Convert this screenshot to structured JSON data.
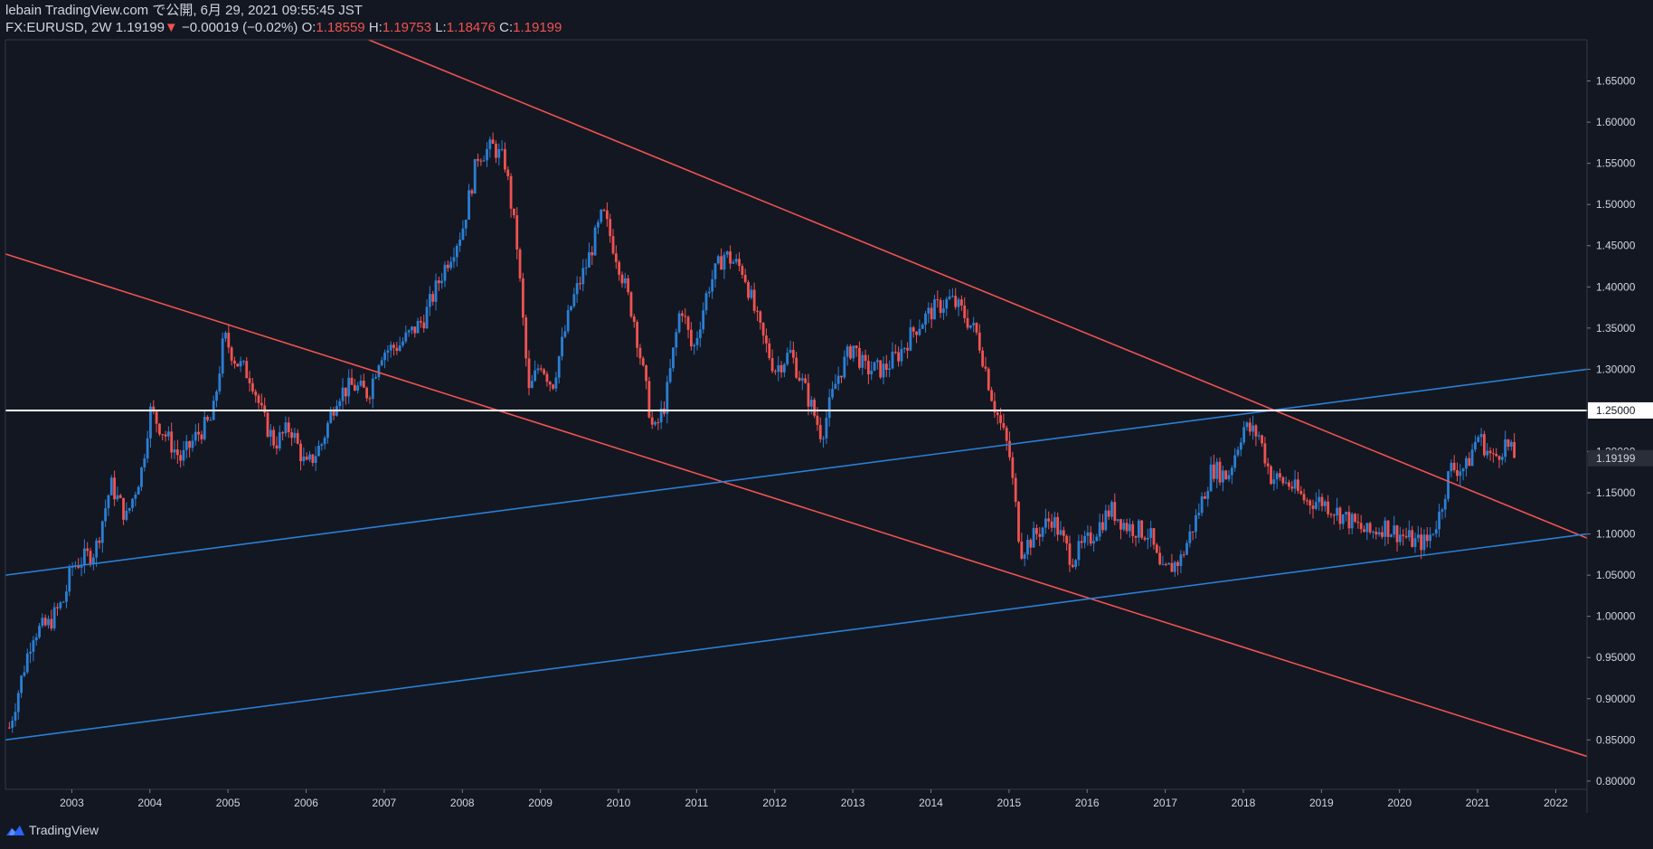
{
  "header": {
    "line1": "lebain TradingView.com で公開, 6月 29, 2021 09:55:45 JST",
    "symbol": "FX:EURUSD, 2W",
    "last": "1.19199",
    "change_arrow": "▼",
    "change": "−0.00019 (−0.02%)",
    "o_label": "O:",
    "o_value": "1.18559",
    "h_label": "H:",
    "h_value": "1.19753",
    "l_label": "L:",
    "l_value": "1.18476",
    "c_label": "C:",
    "c_value": "1.19199"
  },
  "footer": {
    "brand": "TradingView",
    "logo_icon": "tradingview-logo-icon"
  },
  "colors": {
    "background": "#131722",
    "up": "#2962ff",
    "up_light": "#2b7fd4",
    "down": "#ef5350",
    "horizontal": "#ffffff",
    "text": "#d1d4dc",
    "grid": "#1e222d"
  },
  "chart_data": {
    "type": "candlestick",
    "title": "FX:EURUSD, 2W",
    "xlabel": "",
    "ylabel": "",
    "xlim": [
      2002.15,
      2022.4
    ],
    "ylim": [
      0.79,
      1.7
    ],
    "x_ticks": [
      2003,
      2004,
      2005,
      2006,
      2007,
      2008,
      2009,
      2010,
      2011,
      2012,
      2013,
      2014,
      2015,
      2016,
      2017,
      2018,
      2019,
      2020,
      2021,
      2022
    ],
    "x_tick_labels": [
      "2003",
      "2004",
      "2005",
      "2006",
      "2007",
      "2008",
      "2009",
      "2010",
      "2011",
      "2012",
      "2013",
      "2014",
      "2015",
      "2016",
      "2017",
      "2018",
      "2019",
      "2020",
      "2021",
      "2022"
    ],
    "y_ticks": [
      0.8,
      0.85,
      0.9,
      0.95,
      1.0,
      1.05,
      1.1,
      1.15,
      1.2,
      1.25,
      1.3,
      1.35,
      1.4,
      1.45,
      1.5,
      1.55,
      1.6,
      1.65
    ],
    "y_tick_labels": [
      "0.80000",
      "0.85000",
      "0.90000",
      "0.95000",
      "1.00000",
      "1.05000",
      "1.10000",
      "1.15000",
      "1.20000",
      "1.25000",
      "1.30000",
      "1.35000",
      "1.40000",
      "1.45000",
      "1.50000",
      "1.55000",
      "1.60000",
      "1.65000"
    ],
    "price_path": [
      [
        2002.2,
        0.865
      ],
      [
        2002.5,
        0.98
      ],
      [
        2002.7,
        0.99
      ],
      [
        2002.9,
        1.02
      ],
      [
        2003.0,
        1.06
      ],
      [
        2003.3,
        1.08
      ],
      [
        2003.5,
        1.16
      ],
      [
        2003.7,
        1.12
      ],
      [
        2003.9,
        1.18
      ],
      [
        2004.0,
        1.25
      ],
      [
        2004.2,
        1.22
      ],
      [
        2004.4,
        1.19
      ],
      [
        2004.6,
        1.22
      ],
      [
        2004.8,
        1.24
      ],
      [
        2004.95,
        1.34
      ],
      [
        2005.1,
        1.31
      ],
      [
        2005.3,
        1.29
      ],
      [
        2005.45,
        1.24
      ],
      [
        2005.6,
        1.21
      ],
      [
        2005.8,
        1.23
      ],
      [
        2006.0,
        1.18
      ],
      [
        2006.2,
        1.21
      ],
      [
        2006.4,
        1.27
      ],
      [
        2006.6,
        1.28
      ],
      [
        2006.8,
        1.27
      ],
      [
        2006.95,
        1.32
      ],
      [
        2007.2,
        1.33
      ],
      [
        2007.5,
        1.36
      ],
      [
        2007.8,
        1.43
      ],
      [
        2008.0,
        1.47
      ],
      [
        2008.2,
        1.56
      ],
      [
        2008.4,
        1.57
      ],
      [
        2008.55,
        1.55
      ],
      [
        2008.7,
        1.45
      ],
      [
        2008.85,
        1.27
      ],
      [
        2009.0,
        1.31
      ],
      [
        2009.15,
        1.28
      ],
      [
        2009.4,
        1.38
      ],
      [
        2009.6,
        1.43
      ],
      [
        2009.8,
        1.49
      ],
      [
        2010.0,
        1.43
      ],
      [
        2010.2,
        1.36
      ],
      [
        2010.45,
        1.22
      ],
      [
        2010.6,
        1.26
      ],
      [
        2010.8,
        1.38
      ],
      [
        2010.95,
        1.32
      ],
      [
        2011.15,
        1.4
      ],
      [
        2011.35,
        1.44
      ],
      [
        2011.6,
        1.42
      ],
      [
        2011.8,
        1.35
      ],
      [
        2012.0,
        1.3
      ],
      [
        2012.2,
        1.32
      ],
      [
        2012.45,
        1.26
      ],
      [
        2012.6,
        1.22
      ],
      [
        2012.8,
        1.29
      ],
      [
        2013.0,
        1.33
      ],
      [
        2013.15,
        1.3
      ],
      [
        2013.4,
        1.3
      ],
      [
        2013.6,
        1.32
      ],
      [
        2013.8,
        1.35
      ],
      [
        2014.0,
        1.37
      ],
      [
        2014.25,
        1.385
      ],
      [
        2014.4,
        1.37
      ],
      [
        2014.6,
        1.34
      ],
      [
        2014.8,
        1.26
      ],
      [
        2015.0,
        1.2
      ],
      [
        2015.15,
        1.08
      ],
      [
        2015.35,
        1.1
      ],
      [
        2015.55,
        1.12
      ],
      [
        2015.8,
        1.07
      ],
      [
        2016.0,
        1.09
      ],
      [
        2016.3,
        1.13
      ],
      [
        2016.5,
        1.11
      ],
      [
        2016.8,
        1.1
      ],
      [
        2016.95,
        1.05
      ],
      [
        2017.2,
        1.07
      ],
      [
        2017.4,
        1.12
      ],
      [
        2017.6,
        1.18
      ],
      [
        2017.8,
        1.17
      ],
      [
        2018.0,
        1.23
      ],
      [
        2018.2,
        1.22
      ],
      [
        2018.35,
        1.17
      ],
      [
        2018.6,
        1.16
      ],
      [
        2018.8,
        1.14
      ],
      [
        2019.0,
        1.14
      ],
      [
        2019.3,
        1.12
      ],
      [
        2019.6,
        1.1
      ],
      [
        2019.8,
        1.11
      ],
      [
        2020.0,
        1.1
      ],
      [
        2020.2,
        1.09
      ],
      [
        2020.35,
        1.09
      ],
      [
        2020.5,
        1.12
      ],
      [
        2020.65,
        1.18
      ],
      [
        2020.85,
        1.18
      ],
      [
        2021.0,
        1.22
      ],
      [
        2021.2,
        1.19
      ],
      [
        2021.35,
        1.21
      ],
      [
        2021.5,
        1.19
      ]
    ],
    "lines": [
      {
        "name": "red-upper-trendline",
        "color": "#ef5350",
        "points": [
          [
            2006.8,
            1.7
          ],
          [
            2022.4,
            1.095
          ]
        ]
      },
      {
        "name": "red-lower-trendline",
        "color": "#ef5350",
        "points": [
          [
            2002.15,
            1.44
          ],
          [
            2022.4,
            0.83
          ]
        ]
      },
      {
        "name": "blue-upper-trendline",
        "color": "#2b7fd4",
        "points": [
          [
            2002.15,
            1.05
          ],
          [
            2022.4,
            1.3
          ]
        ]
      },
      {
        "name": "blue-lower-trendline",
        "color": "#2b7fd4",
        "points": [
          [
            2002.15,
            0.85
          ],
          [
            2022.4,
            1.1
          ]
        ]
      },
      {
        "name": "horizontal-level-1.25",
        "color": "#ffffff",
        "points": [
          [
            2002.15,
            1.25
          ],
          [
            2022.4,
            1.25
          ]
        ]
      }
    ],
    "last_price": 1.19199,
    "last_price_label": "1.19199",
    "level_label": "1.25000",
    "grid": false
  }
}
